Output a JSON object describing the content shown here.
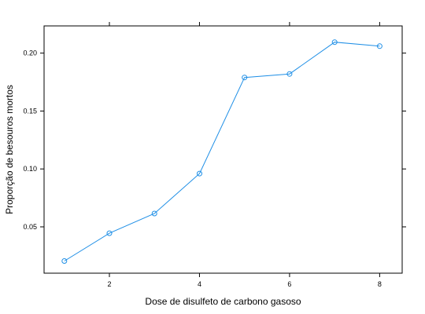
{
  "chart_data": {
    "type": "line",
    "title": "",
    "xlabel": "Dose de disulfeto de carbono gasoso",
    "ylabel": "Proporção de besouros mortos",
    "x": [
      1,
      2,
      3,
      4,
      5,
      6,
      7,
      8
    ],
    "series": [
      {
        "values": [
          0.0205,
          0.0445,
          0.0615,
          0.096,
          0.179,
          0.182,
          0.2095,
          0.206
        ],
        "color": "#1f8fe6",
        "marker": "open-circle"
      }
    ],
    "xlim": [
      0.55,
      8.5
    ],
    "ylim": [
      0.01,
      0.2235
    ],
    "x_ticks": [
      2,
      4,
      6,
      8
    ],
    "y_ticks": [
      0.05,
      0.1,
      0.15,
      0.2
    ],
    "x_tick_labels": [
      "2",
      "4",
      "6",
      "8"
    ],
    "y_tick_labels": [
      "0.05",
      "0.10",
      "0.15",
      "0.20"
    ],
    "grid": false,
    "legend": "none"
  }
}
